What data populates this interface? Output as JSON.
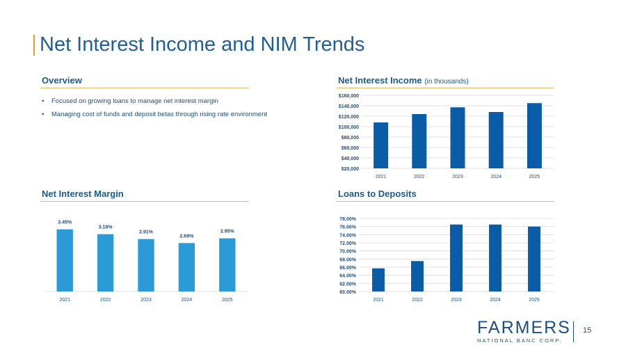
{
  "page": {
    "title": "Net Interest Income and NIM Trends",
    "page_number": "15"
  },
  "overview": {
    "heading": "Overview",
    "bullets": [
      "Focused on growing loans to manage net interest margin",
      "Managing cost of funds and deposit betas through rising rate environment"
    ]
  },
  "nii_section": {
    "heading": "Net Interest Income",
    "subheading": "(in thousands)"
  },
  "nim_section": {
    "heading": "Net Interest Margin"
  },
  "ltd_section": {
    "heading": "Loans to Deposits"
  },
  "logo": {
    "main": "FARMERS",
    "sub": "NATIONAL BANC CORP."
  },
  "colors": {
    "dark_bar": "#0a5ca6",
    "light_bar": "#2a9bd6",
    "rule": "#e2b766",
    "accent": "#e39b2b"
  },
  "chart_data": [
    {
      "id": "nii",
      "type": "bar",
      "title": "Net Interest Income (in thousands)",
      "categories": [
        "2021",
        "2022",
        "2023",
        "2024",
        "2025"
      ],
      "values": [
        108000,
        124000,
        137000,
        128000,
        145000
      ],
      "ylim": [
        20000,
        160000
      ],
      "yticks": [
        20000,
        40000,
        60000,
        80000,
        100000,
        120000,
        140000,
        160000
      ],
      "ytick_labels": [
        "$20,000",
        "$40,000",
        "$60,000",
        "$80,000",
        "$100,000",
        "$120,000",
        "$140,000",
        "$160,000"
      ],
      "grid": true
    },
    {
      "id": "nim",
      "type": "bar",
      "title": "Net Interest Margin",
      "categories": [
        "2021",
        "2022",
        "2023",
        "2024",
        "2025"
      ],
      "values": [
        3.45,
        3.18,
        2.91,
        2.69,
        2.95
      ],
      "data_labels": [
        "3.45%",
        "3.18%",
        "2.91%",
        "2.69%",
        "2.95%"
      ],
      "ylim": [
        0,
        3.9
      ],
      "grid": false
    },
    {
      "id": "ltd",
      "type": "bar",
      "title": "Loans to Deposits",
      "categories": [
        "2021",
        "2022",
        "2023",
        "2024",
        "2025"
      ],
      "values": [
        65.7,
        67.5,
        76.5,
        76.5,
        76.0
      ],
      "ylim": [
        60,
        78
      ],
      "yticks": [
        60,
        62,
        64,
        66,
        68,
        70,
        72,
        74,
        76,
        78
      ],
      "ytick_labels": [
        "60.00%",
        "62.00%",
        "64.00%",
        "66.00%",
        "68.00%",
        "70.00%",
        "72.00%",
        "74.00%",
        "76.00%",
        "78.00%"
      ],
      "grid": true
    }
  ]
}
